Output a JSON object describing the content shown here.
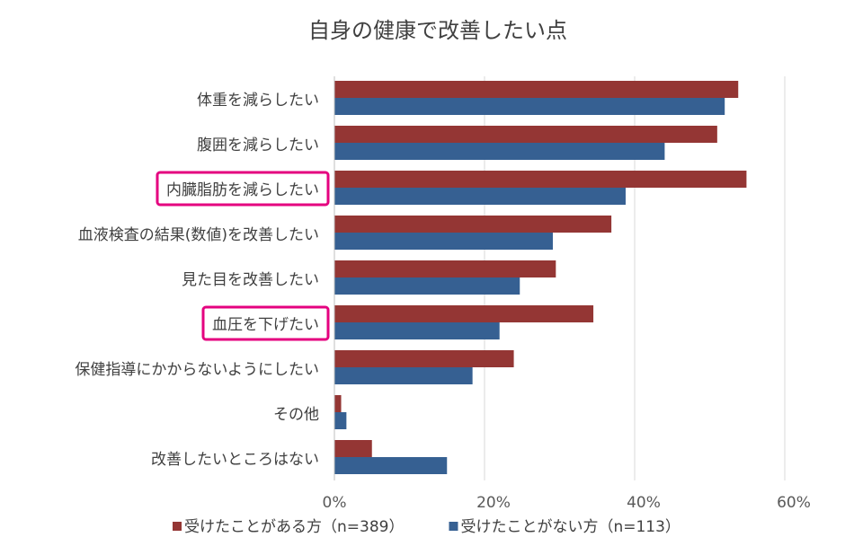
{
  "chart_data": {
    "type": "bar",
    "orientation": "horizontal",
    "title": "自身の健康で改善したい点",
    "categories": [
      "体重を減らしたい",
      "腹囲を減らしたい",
      "内臓脂肪を減らしたい",
      "血液検査の結果(数値)を改善したい",
      "見た目を改善したい",
      "血圧を下げたい",
      "保健指導にかからないようにしたい",
      "その他",
      "改善したいところはない"
    ],
    "highlighted_categories": [
      "内臓脂肪を減らしたい",
      "血圧を下げたい"
    ],
    "series": [
      {
        "name": "受けたことがある方（n=389）",
        "color": "#943634",
        "values": [
          53.8,
          51.0,
          54.9,
          36.9,
          29.5,
          34.5,
          23.9,
          0.9,
          5.0
        ]
      },
      {
        "name": "受けたことがない方（n=113）",
        "color": "#366092",
        "values": [
          52.0,
          44.0,
          38.8,
          29.1,
          24.7,
          22.0,
          18.4,
          1.6,
          15.0
        ]
      }
    ],
    "xlim": [
      0,
      60
    ],
    "xticks": [
      0,
      20,
      40,
      60
    ],
    "xtick_labels": [
      "0%",
      "20%",
      "40%",
      "60%"
    ],
    "grid": true,
    "legend_position": "bottom",
    "highlight_color": "#e4007f"
  }
}
